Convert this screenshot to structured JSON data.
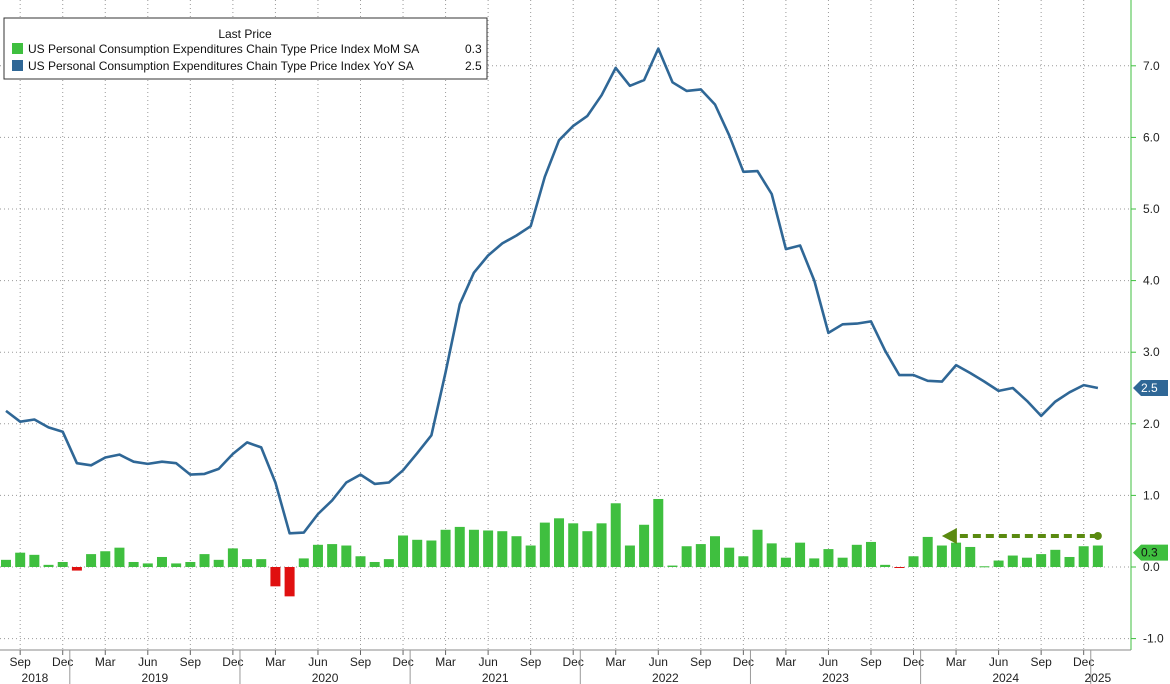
{
  "chart_data": {
    "type": "bar+line",
    "legend": {
      "title": "Last Price",
      "placement": "top-left",
      "entries": [
        {
          "name": "US Personal Consumption Expenditures Chain Type Price Index MoM SA",
          "last": "0.3",
          "color": "#3fbf3f"
        },
        {
          "name": "US Personal Consumption Expenditures Chain Type Price Index YoY SA",
          "last": "2.5",
          "color": "#2f6796"
        }
      ]
    },
    "y_axis": {
      "side": "right",
      "ticks": [
        "7.0",
        "6.0",
        "5.0",
        "4.0",
        "3.0",
        "2.0",
        "1.0",
        "0.0",
        "-1.0"
      ],
      "ylim": [
        -1.0,
        7.6
      ]
    },
    "x_axis": {
      "month_labels": [
        "Sep",
        "Dec",
        "Mar",
        "Jun",
        "Sep",
        "Dec",
        "Mar",
        "Jun",
        "Sep",
        "Dec",
        "Mar",
        "Jun",
        "Sep",
        "Dec",
        "Mar",
        "Jun",
        "Sep",
        "Dec",
        "Mar",
        "Jun",
        "Sep",
        "Dec",
        "Mar",
        "Jun",
        "Sep",
        "Dec"
      ],
      "year_labels": [
        "2018",
        "2019",
        "2020",
        "2021",
        "2022",
        "2023",
        "2024",
        "2025"
      ],
      "start": "2018-08",
      "end": "2025-01",
      "grid": true
    },
    "series": [
      {
        "name": "US Personal Consumption Expenditures Chain Type Price Index MoM SA",
        "type": "bar",
        "positive_color": "#3fbf3f",
        "negative_color": "#e01010",
        "values": [
          0.1,
          0.2,
          0.17,
          0.03,
          0.07,
          -0.05,
          0.18,
          0.22,
          0.27,
          0.07,
          0.05,
          0.14,
          0.05,
          0.07,
          0.18,
          0.1,
          0.26,
          0.11,
          0.11,
          -0.27,
          -0.41,
          0.12,
          0.31,
          0.32,
          0.3,
          0.15,
          0.07,
          0.11,
          0.44,
          0.38,
          0.37,
          0.52,
          0.56,
          0.52,
          0.51,
          0.5,
          0.43,
          0.3,
          0.62,
          0.68,
          0.61,
          0.5,
          0.61,
          0.89,
          0.3,
          0.59,
          0.95,
          0.02,
          0.29,
          0.32,
          0.43,
          0.27,
          0.15,
          0.52,
          0.33,
          0.13,
          0.34,
          0.12,
          0.25,
          0.13,
          0.31,
          0.35,
          0.03,
          -0.01,
          0.15,
          0.42,
          0.3,
          0.34,
          0.28,
          0.01,
          0.09,
          0.16,
          0.13,
          0.18,
          0.24,
          0.14,
          0.29,
          0.3
        ]
      },
      {
        "name": "US Personal Consumption Expenditures Chain Type Price Index YoY SA",
        "type": "line",
        "color": "#2f6796",
        "values": [
          2.18,
          2.03,
          2.06,
          1.95,
          1.89,
          1.45,
          1.42,
          1.53,
          1.57,
          1.47,
          1.44,
          1.47,
          1.45,
          1.29,
          1.3,
          1.37,
          1.58,
          1.74,
          1.67,
          1.18,
          0.47,
          0.48,
          0.74,
          0.93,
          1.18,
          1.29,
          1.16,
          1.18,
          1.35,
          1.59,
          1.84,
          2.72,
          3.67,
          4.11,
          4.35,
          4.52,
          4.63,
          4.76,
          5.45,
          5.96,
          6.16,
          6.3,
          6.59,
          6.97,
          6.72,
          6.8,
          7.24,
          6.77,
          6.65,
          6.67,
          6.46,
          6.03,
          5.52,
          5.53,
          5.21,
          4.44,
          4.49,
          4.0,
          3.27,
          3.39,
          3.4,
          3.43,
          3.02,
          2.68,
          2.68,
          2.6,
          2.59,
          2.82,
          2.71,
          2.59,
          2.46,
          2.5,
          2.32,
          2.11,
          2.31,
          2.44,
          2.54,
          2.5
        ]
      }
    ],
    "end_labels": [
      "2.5",
      "0.3"
    ],
    "annotation": {
      "type": "dashed-arrow",
      "color": "#5a8a10",
      "from_month": "2025-01",
      "to_month": "2024-02",
      "at_value": 0.35
    }
  }
}
